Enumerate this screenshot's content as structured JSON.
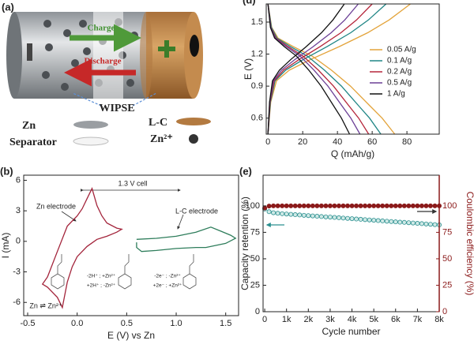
{
  "illustration": {
    "label": "(a)",
    "charge": "Charge",
    "discharge": "Discharge",
    "wipse": "WIPSE",
    "legend": [
      "Zn",
      "L-C",
      "Separator",
      "Zn²⁺"
    ]
  },
  "chart_data": [
    {
      "type": "line",
      "panel": "(b)",
      "xlabel": "E (V) vs Zn",
      "ylabel": "I (mA)",
      "xlim": [
        -0.54,
        1.63
      ],
      "xticks": [
        -0.5,
        {
          "value": 0,
          "label": "0.0"
        },
        0.5,
        {
          "value": 1,
          "label": "1.0"
        },
        1.5
      ],
      "ylim": [
        -7.3,
        6.5
      ],
      "yticks": [
        -6,
        -3,
        0,
        3,
        6
      ],
      "annotations": [
        "1.3 V cell",
        "-2H⁺ ; +Zn²⁺",
        "+2H⁺ ; -Zn²⁺",
        "-2e⁻ ; -Zn²⁺",
        "+2e⁻ ; +Zn²⁺",
        "Zn ⇌ Zn²⁺"
      ],
      "series": [
        {
          "name": "Zn electrode",
          "color": "#a3243b",
          "x": [
            -0.3,
            -0.2,
            -0.1,
            0.0,
            0.05,
            0.1,
            0.15,
            0.2,
            0.25,
            0.3,
            0.4,
            0.45,
            0.4,
            0.3,
            0.2,
            0.1,
            0.0,
            -0.05,
            -0.1,
            -0.15,
            -0.2,
            -0.3,
            -0.35,
            -0.3
          ],
          "values": [
            -3.5,
            -1,
            1.5,
            2.5,
            3.2,
            4.2,
            5.2,
            3.5,
            2.5,
            1.8,
            1.3,
            1.2,
            0.9,
            0.5,
            0.2,
            -0.5,
            -1.5,
            -2.5,
            -4,
            -6.5,
            -5.5,
            -4.5,
            -4.2,
            -3.5
          ]
        },
        {
          "name": "L-C electrode",
          "color": "#2e7d5b",
          "x": [
            0.6,
            0.8,
            1.0,
            1.2,
            1.35,
            1.45,
            1.55,
            1.6,
            1.5,
            1.3,
            1.2,
            1.0,
            0.8,
            0.65,
            0.6,
            0.6
          ],
          "values": [
            0.2,
            0.3,
            0.5,
            0.9,
            1.4,
            1.0,
            0.6,
            0.3,
            -0.2,
            -0.6,
            -0.6,
            -0.7,
            -0.9,
            -1.0,
            -0.6,
            -0.1
          ]
        }
      ]
    },
    {
      "type": "line",
      "panel": "(d)",
      "xlabel": "Q (mAh/g)",
      "ylabel": "E (V)",
      "xlim": [
        -1,
        98.6
      ],
      "xticks": [
        0,
        20,
        40,
        60,
        80
      ],
      "ylim": [
        0.45,
        1.67
      ],
      "yticks": [
        0.6,
        0.9,
        1.2,
        1.5
      ],
      "legend": "right",
      "series": [
        {
          "name": "0.05 A/g",
          "color": "#e3a33a",
          "x": [
            0,
            2.2,
            5.8,
            14.6,
            25.6,
            36.5,
            47.5,
            58.4,
            65.7,
            73,
            null,
            0,
            1.6,
            4.9,
            12.3,
            24.6,
            41,
            57.4,
            69.7,
            82
          ],
          "values": [
            1.67,
            1.45,
            1.35,
            1.27,
            1.18,
            1.05,
            0.9,
            0.72,
            0.6,
            0.45,
            null,
            0.45,
            0.75,
            0.95,
            1.05,
            1.15,
            1.27,
            1.4,
            1.52,
            1.67
          ]
        },
        {
          "name": "0.1 A/g",
          "color": "#1f8585",
          "x": [
            0,
            2,
            5.2,
            13,
            22.8,
            32.5,
            42.3,
            52,
            58.5,
            65,
            null,
            0,
            1.4,
            4.1,
            10.2,
            20.4,
            34,
            47.6,
            57.8,
            68
          ],
          "values": [
            1.67,
            1.45,
            1.35,
            1.27,
            1.18,
            1.05,
            0.9,
            0.72,
            0.6,
            0.45,
            null,
            0.45,
            0.75,
            0.95,
            1.05,
            1.15,
            1.27,
            1.4,
            1.52,
            1.67
          ]
        },
        {
          "name": "0.2 A/g",
          "color": "#b5253a",
          "x": [
            0,
            1.7,
            4.6,
            11.6,
            20.3,
            29,
            37.7,
            46.4,
            52.2,
            58,
            null,
            0,
            1.2,
            3.6,
            9,
            18,
            30,
            42,
            51,
            60
          ],
          "values": [
            1.67,
            1.45,
            1.35,
            1.27,
            1.18,
            1.05,
            0.9,
            0.72,
            0.6,
            0.45,
            null,
            0.45,
            0.75,
            0.95,
            1.05,
            1.15,
            1.27,
            1.4,
            1.52,
            1.67
          ]
        },
        {
          "name": "0.5 A/g",
          "color": "#6b3f96",
          "x": [
            0,
            1.6,
            4.2,
            10.6,
            18.6,
            26.5,
            34.5,
            42.4,
            47.7,
            53,
            null,
            0,
            1,
            3.1,
            7.8,
            15.6,
            26,
            36.4,
            44.2,
            52
          ],
          "values": [
            1.67,
            1.45,
            1.35,
            1.27,
            1.18,
            1.05,
            0.9,
            0.72,
            0.6,
            0.45,
            null,
            0.45,
            0.75,
            0.95,
            1.05,
            1.15,
            1.27,
            1.4,
            1.52,
            1.67
          ]
        },
        {
          "name": "1 A/g",
          "color": "#111111",
          "x": [
            0,
            1.4,
            3.8,
            9.4,
            16.5,
            23.5,
            30.6,
            37.6,
            42.3,
            47,
            null,
            0,
            0.9,
            2.6,
            6.6,
            13.2,
            22,
            30.8,
            37.4,
            44
          ],
          "values": [
            1.67,
            1.45,
            1.35,
            1.27,
            1.18,
            1.05,
            0.9,
            0.72,
            0.6,
            0.45,
            null,
            0.45,
            0.75,
            0.95,
            1.05,
            1.15,
            1.27,
            1.4,
            1.52,
            1.67
          ]
        }
      ]
    },
    {
      "type": "scatter",
      "panel": "(e)",
      "xlabel": "Cycle number",
      "ylabel": "Capacity retention (%)",
      "y2label": "Coulombic efficiency (%)",
      "xlim": [
        -75,
        8000
      ],
      "xticks": [
        0,
        {
          "value": 1000,
          "label": "1k"
        },
        {
          "value": 2000,
          "label": "2k"
        },
        {
          "value": 3000,
          "label": "3k"
        },
        {
          "value": 4000,
          "label": "4k"
        },
        {
          "value": 5000,
          "label": "5k"
        },
        {
          "value": 6000,
          "label": "6k"
        },
        {
          "value": 7000,
          "label": "7k"
        },
        {
          "value": 8000,
          "label": "8k"
        }
      ],
      "ylim": [
        0,
        129
      ],
      "yticks": [
        0,
        25,
        50,
        75,
        100
      ],
      "y2lim": [
        0,
        129
      ],
      "y2ticks": [
        0,
        25,
        50,
        75,
        100
      ],
      "y2color": "#8b1a1a",
      "series": [
        {
          "color": "#2a8f8f",
          "axis": "y",
          "x": [
            0,
            200,
            400,
            600,
            800,
            1000,
            1200,
            1400,
            1600,
            1800,
            2000,
            2200,
            2400,
            2600,
            2800,
            3000,
            3200,
            3400,
            3600,
            3800,
            4000,
            4200,
            4400,
            4600,
            4800,
            5000,
            5200,
            5400,
            5600,
            5800,
            6000,
            6200,
            6400,
            6600,
            6800,
            7000,
            7200,
            7400,
            7600,
            7800,
            8000
          ],
          "values": [
            97,
            94.5,
            93.5,
            93,
            92.6,
            92.3,
            92,
            91.7,
            91.4,
            91.1,
            90.8,
            90.5,
            90.2,
            89.9,
            89.6,
            89.4,
            89.1,
            88.8,
            88.5,
            88.2,
            87.9,
            87.6,
            87.3,
            87,
            86.7,
            86.4,
            86.1,
            85.8,
            85.5,
            85.2,
            84.9,
            84.6,
            84.4,
            84.1,
            83.8,
            83.5,
            83.2,
            82.9,
            82.6,
            82.3,
            82
          ]
        },
        {
          "color": "#8b1a1a",
          "axis": "y2",
          "x": [
            0,
            200,
            400,
            600,
            800,
            1000,
            1200,
            1400,
            1600,
            1800,
            2000,
            2200,
            2400,
            2600,
            2800,
            3000,
            3200,
            3400,
            3600,
            3800,
            4000,
            4200,
            4400,
            4600,
            4800,
            5000,
            5200,
            5400,
            5600,
            5800,
            6000,
            6200,
            6400,
            6600,
            6800,
            7000,
            7200,
            7400,
            7600,
            7800,
            8000
          ],
          "values": [
            98,
            99.8,
            100,
            100,
            100,
            100,
            100,
            100,
            100,
            100,
            100,
            100,
            100,
            100,
            100,
            100,
            100,
            100,
            100,
            100,
            100,
            100,
            100,
            100,
            100,
            100,
            100,
            100,
            100,
            100,
            100,
            100,
            100,
            100,
            100,
            100,
            100,
            100,
            100,
            100,
            100
          ]
        }
      ]
    }
  ]
}
